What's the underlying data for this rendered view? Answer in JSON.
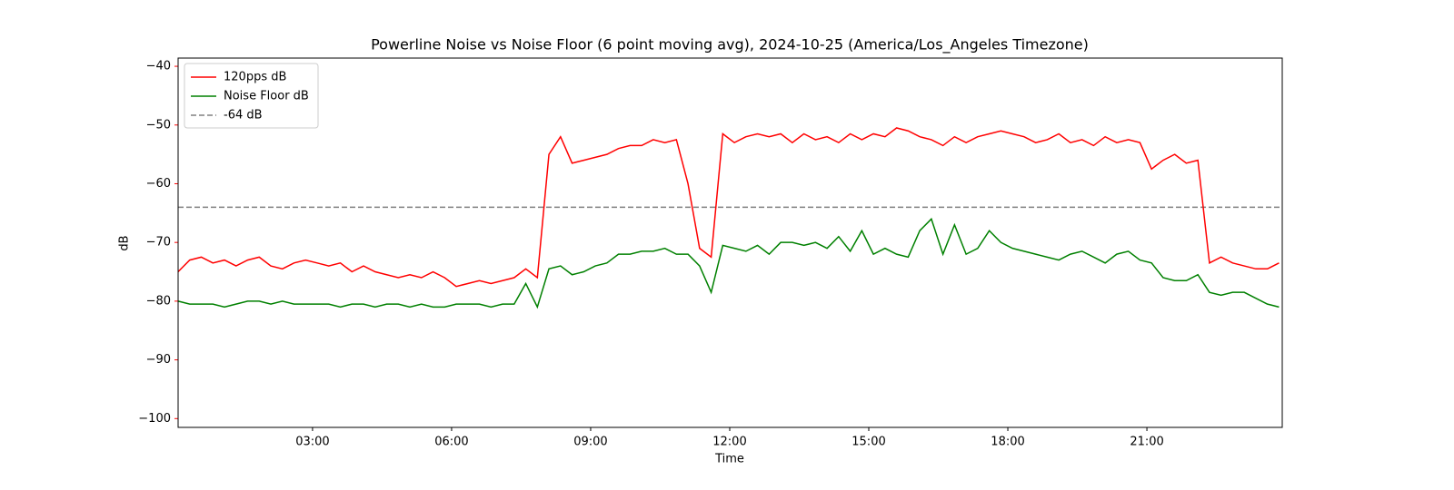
{
  "chart_data": {
    "type": "line",
    "title": "Powerline Noise vs Noise Floor (6 point moving avg), 2024-10-25 (America/Los_Angeles Timezone)",
    "x_label": "Time",
    "y_label": "dB",
    "y_label_color": "#ff0000",
    "x": [
      0.1,
      0.35,
      0.6,
      0.85,
      1.1,
      1.35,
      1.6,
      1.85,
      2.1,
      2.35,
      2.6,
      2.85,
      3.1,
      3.35,
      3.6,
      3.85,
      4.1,
      4.35,
      4.6,
      4.85,
      5.1,
      5.35,
      5.6,
      5.85,
      6.1,
      6.35,
      6.6,
      6.85,
      7.1,
      7.35,
      7.6,
      7.85,
      8.1,
      8.35,
      8.6,
      8.85,
      9.1,
      9.35,
      9.6,
      9.85,
      10.1,
      10.35,
      10.6,
      10.85,
      11.1,
      11.35,
      11.6,
      11.85,
      12.1,
      12.35,
      12.6,
      12.85,
      13.1,
      13.35,
      13.6,
      13.85,
      14.1,
      14.35,
      14.6,
      14.85,
      15.1,
      15.35,
      15.6,
      15.85,
      16.1,
      16.35,
      16.6,
      16.85,
      17.1,
      17.35,
      17.6,
      17.85,
      18.1,
      18.35,
      18.6,
      18.85,
      19.1,
      19.35,
      19.6,
      19.85,
      20.1,
      20.35,
      20.6,
      20.85,
      21.1,
      21.35,
      21.6,
      21.85,
      22.1,
      22.35,
      22.6,
      22.85,
      23.1,
      23.35,
      23.6,
      23.85
    ],
    "series": [
      {
        "name": "120pps dB",
        "color": "#ff0000",
        "values": [
          -75,
          -73,
          -72.5,
          -73.5,
          -73,
          -74,
          -73,
          -72.5,
          -74,
          -74.5,
          -73.5,
          -73,
          -73.5,
          -74,
          -73.5,
          -75,
          -74,
          -75,
          -75.5,
          -76,
          -75.5,
          -76,
          -75,
          -76,
          -77.5,
          -77,
          -76.5,
          -77,
          -76.5,
          -76,
          -74.5,
          -76,
          -55,
          -52,
          -56.5,
          -56,
          -55.5,
          -55,
          -54,
          -53.5,
          -53.5,
          -52.5,
          -53,
          -52.5,
          -60,
          -71,
          -72.5,
          -51.5,
          -53,
          -52,
          -51.5,
          -52,
          -51.5,
          -53,
          -51.5,
          -52.5,
          -52,
          -53,
          -51.5,
          -52.5,
          -51.5,
          -52,
          -50.5,
          -51,
          -52,
          -52.5,
          -53.5,
          -52,
          -53,
          -52,
          -51.5,
          -51,
          -51.5,
          -52,
          -53,
          -52.5,
          -51.5,
          -53,
          -52.5,
          -53.5,
          -52,
          -53,
          -52.5,
          -53,
          -57.5,
          -56,
          -55,
          -56.5,
          -56,
          -73.5,
          -72.5,
          -73.5,
          -74,
          -74.5,
          -74.5,
          -73.5
        ]
      },
      {
        "name": "Noise Floor dB",
        "color": "#008000",
        "values": [
          -80,
          -80.5,
          -80.5,
          -80.5,
          -81,
          -80.5,
          -80,
          -80,
          -80.5,
          -80,
          -80.5,
          -80.5,
          -80.5,
          -80.5,
          -81,
          -80.5,
          -80.5,
          -81,
          -80.5,
          -80.5,
          -81,
          -80.5,
          -81,
          -81,
          -80.5,
          -80.5,
          -80.5,
          -81,
          -80.5,
          -80.5,
          -77,
          -81,
          -74.5,
          -74,
          -75.5,
          -75,
          -74,
          -73.5,
          -72,
          -72,
          -71.5,
          -71.5,
          -71,
          -72,
          -72,
          -74,
          -78.5,
          -70.5,
          -71,
          -71.5,
          -70.5,
          -72,
          -70,
          -70,
          -70.5,
          -70,
          -71,
          -69,
          -71.5,
          -68,
          -72,
          -71,
          -72,
          -72.5,
          -68,
          -66,
          -72,
          -67,
          -72,
          -71,
          -68,
          -70,
          -71,
          -71.5,
          -72,
          -72.5,
          -73,
          -72,
          -71.5,
          -72.5,
          -73.5,
          -72,
          -71.5,
          -73,
          -73.5,
          -76,
          -76.5,
          -76.5,
          -75.5,
          -78.5,
          -79,
          -78.5,
          -78.5,
          -79.5,
          -80.5,
          -81
        ]
      }
    ],
    "reference_lines": [
      {
        "name": "-64 dB",
        "value": -64,
        "color": "#808080",
        "dashed": true
      }
    ],
    "xlim": [
      0.1,
      23.92
    ],
    "ylim": [
      -101.5,
      -38.6
    ],
    "xticks": [
      {
        "value": 3,
        "label": "03:00"
      },
      {
        "value": 6,
        "label": "06:00"
      },
      {
        "value": 9,
        "label": "09:00"
      },
      {
        "value": 12,
        "label": "12:00"
      },
      {
        "value": 15,
        "label": "15:00"
      },
      {
        "value": 18,
        "label": "18:00"
      },
      {
        "value": 21,
        "label": "21:00"
      }
    ],
    "yticks": [
      {
        "value": -100,
        "label": "−100"
      },
      {
        "value": -90,
        "label": "−90"
      },
      {
        "value": -80,
        "label": "−80"
      },
      {
        "value": -70,
        "label": "−70"
      },
      {
        "value": -60,
        "label": "−60"
      },
      {
        "value": -50,
        "label": "−50"
      },
      {
        "value": -40,
        "label": "−40"
      }
    ],
    "ytick_color": "#ff0000",
    "legend": "upper-left",
    "grid": false
  }
}
